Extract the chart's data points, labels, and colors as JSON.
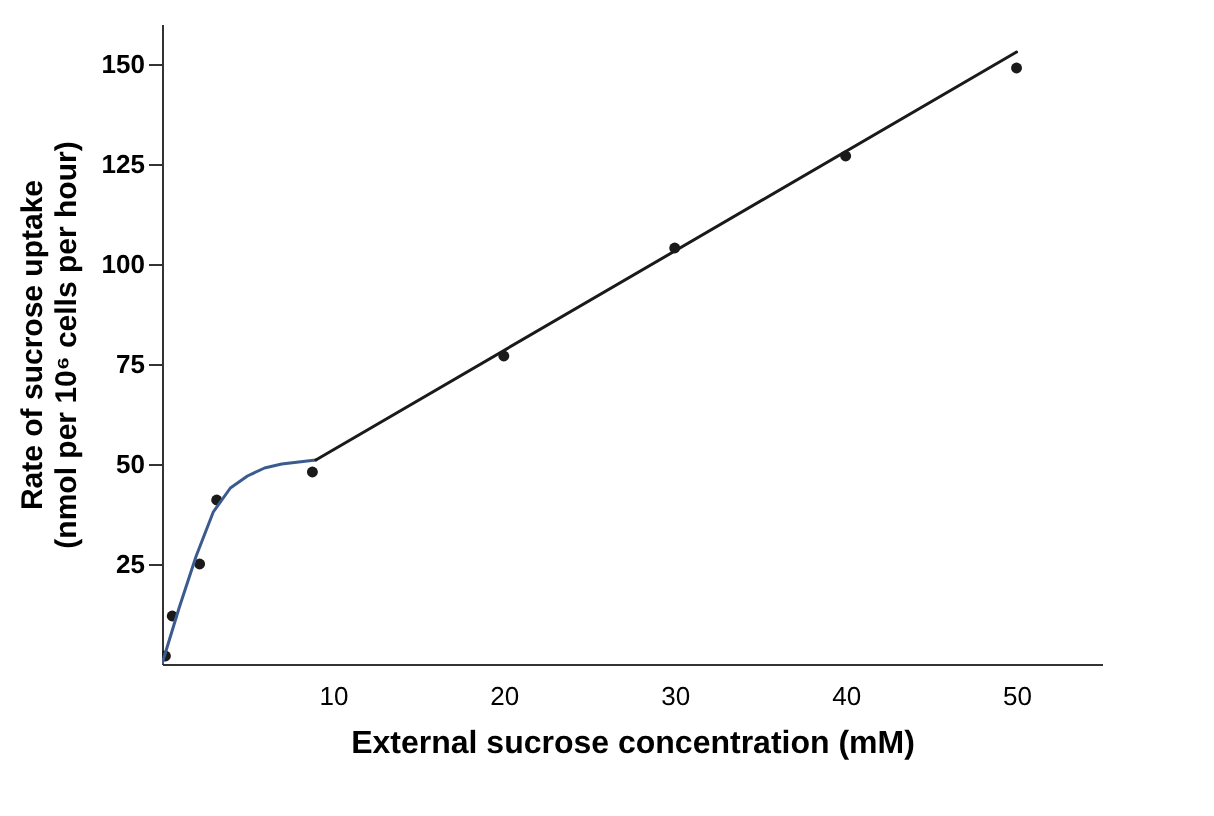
{
  "chart_data": {
    "type": "scatter",
    "xlabel": "External sucrose concentration (mM)",
    "ylabel": "Rate of sucrose uptake\n(nmol per 10⁶ cells per hour)",
    "xlim": [
      0,
      55
    ],
    "ylim": [
      0,
      160
    ],
    "xticks": [
      10,
      20,
      30,
      40,
      50
    ],
    "yticks": [
      25,
      50,
      75,
      100,
      125,
      150
    ],
    "grid": false,
    "series": [
      {
        "type": "scatter",
        "color": "#1a1a1a",
        "marker": "circle",
        "x": [
          0.2,
          0.6,
          2.2,
          3.2,
          8.8,
          20,
          30,
          40,
          50
        ],
        "values": [
          2,
          12,
          25,
          41,
          48,
          77,
          104,
          127,
          149
        ]
      },
      {
        "type": "line",
        "color": "#3b5b8f",
        "x": [
          0,
          1,
          2,
          3,
          4,
          5,
          6,
          7,
          8,
          9
        ],
        "values": [
          0,
          14,
          27,
          38,
          44,
          47,
          49,
          50,
          50.5,
          51
        ]
      },
      {
        "type": "line",
        "color": "#1a1a1a",
        "x": [
          9,
          50
        ],
        "values": [
          51,
          153
        ]
      }
    ]
  }
}
